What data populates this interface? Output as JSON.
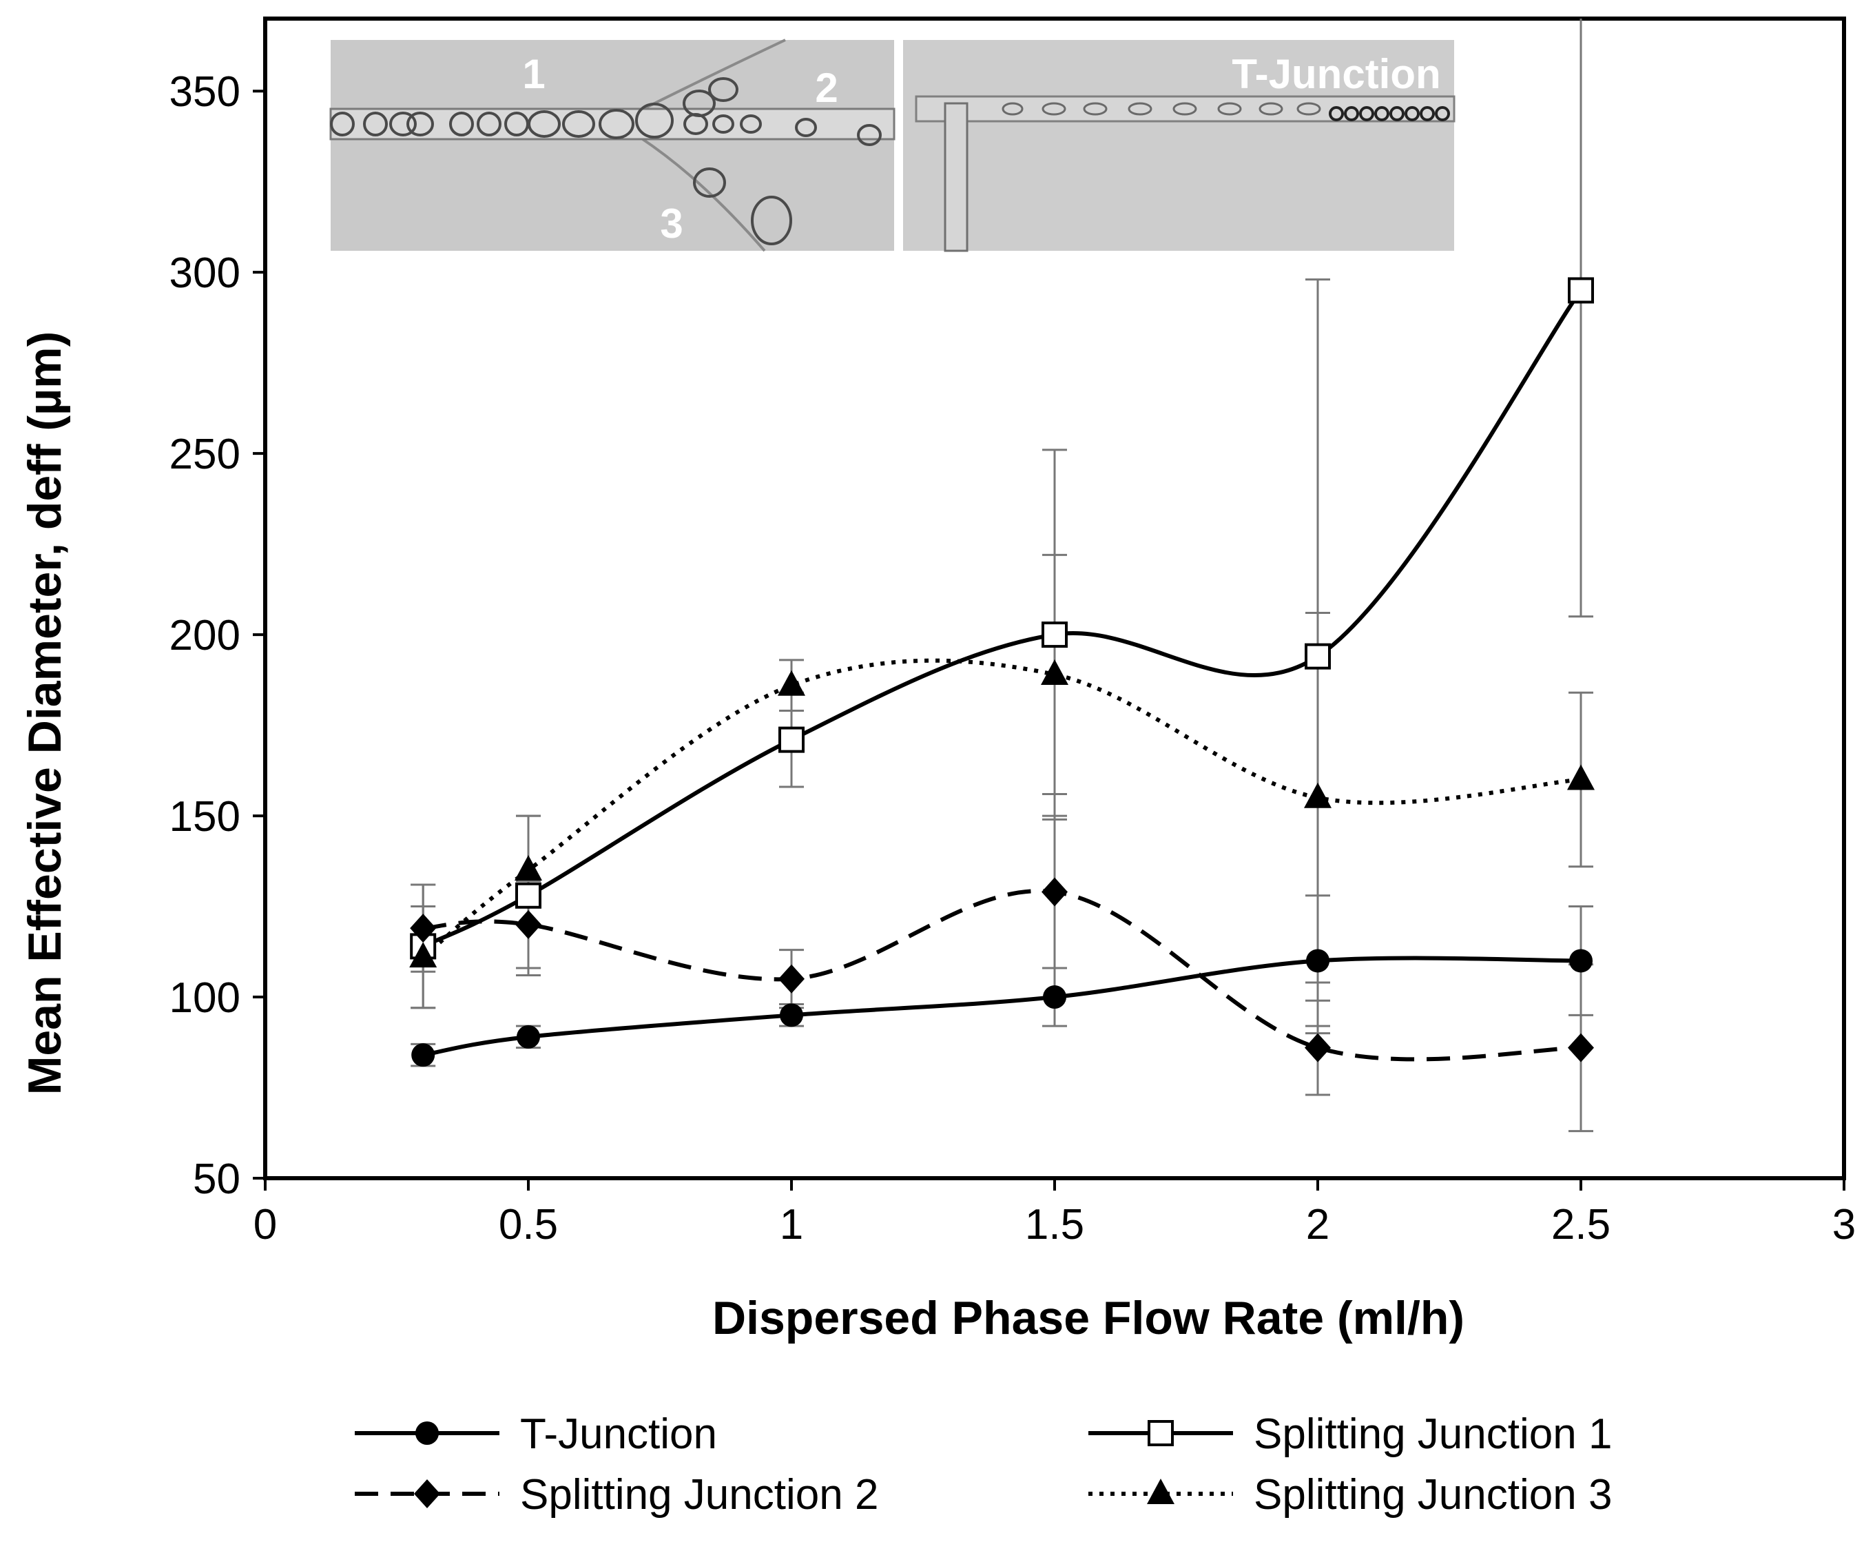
{
  "chart_data": {
    "type": "line",
    "title": "",
    "xlabel": "Dispersed Phase Flow Rate (ml/h)",
    "ylabel": "Mean Effective Diameter, deff (µm)",
    "xlim": [
      0,
      3
    ],
    "ylim": [
      50,
      370
    ],
    "xticks": [
      "0",
      "0.5",
      "1",
      "1.5",
      "2",
      "2.5",
      "3"
    ],
    "xtick_values": [
      0,
      0.5,
      1,
      1.5,
      2,
      2.5,
      3
    ],
    "yticks": [
      "50",
      "100",
      "150",
      "200",
      "250",
      "300",
      "350"
    ],
    "ytick_values": [
      50,
      100,
      150,
      200,
      250,
      300,
      350
    ],
    "grid": false,
    "legend_position": "bottom",
    "series": [
      {
        "name": "T-Junction",
        "style": "solid",
        "marker": "circle-filled",
        "x": [
          0.3,
          0.5,
          1,
          1.5,
          2,
          2.5
        ],
        "y": [
          84,
          89,
          95,
          100,
          110,
          110
        ],
        "error": [
          3,
          3,
          3,
          8,
          18,
          15
        ]
      },
      {
        "name": "Splitting Junction 1",
        "style": "solid",
        "marker": "square-open",
        "x": [
          0.3,
          0.5,
          1,
          1.5,
          2,
          2.5
        ],
        "y": [
          114,
          128,
          171,
          200,
          194,
          295
        ],
        "error": [
          17,
          22,
          13,
          51,
          104,
          90
        ]
      },
      {
        "name": "Splitting Junction 2",
        "style": "dashed",
        "marker": "diamond-filled",
        "x": [
          0.3,
          0.5,
          1,
          1.5,
          2,
          2.5
        ],
        "y": [
          119,
          120,
          105,
          129,
          86,
          86
        ],
        "error": [
          12,
          12,
          8,
          21,
          13,
          23
        ]
      },
      {
        "name": "Splitting Junction 3",
        "style": "dotted",
        "marker": "triangle-filled",
        "x": [
          0.3,
          0.5,
          1,
          1.5,
          2,
          2.5
        ],
        "y": [
          111,
          135,
          186,
          189,
          155,
          160
        ],
        "error": [
          14,
          15,
          7,
          33,
          51,
          24
        ]
      }
    ],
    "inset": {
      "left_labels": [
        "1",
        "2",
        "3"
      ],
      "right_label": "T-Junction"
    }
  }
}
